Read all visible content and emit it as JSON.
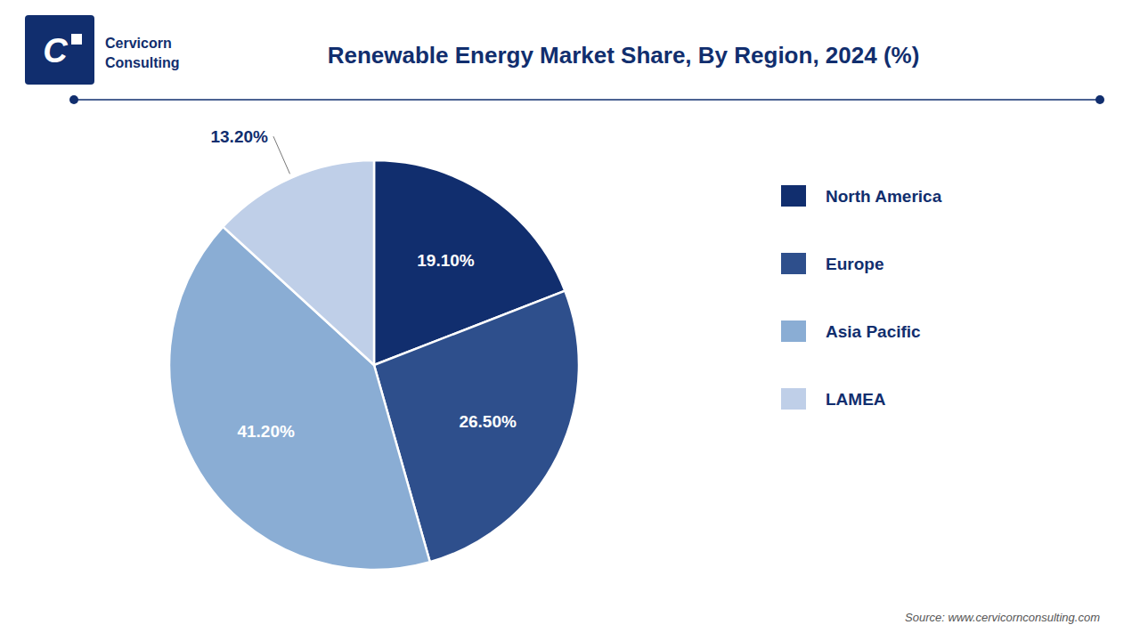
{
  "chart_data": {
    "type": "pie",
    "title": "Renewable Energy Market Share, By Region, 2024 (%)",
    "categories": [
      "North America",
      "Europe",
      "Asia Pacific",
      "LAMEA"
    ],
    "values": [
      19.1,
      26.5,
      41.2,
      13.2
    ],
    "value_labels": [
      "19.10%",
      "26.50%",
      "41.20%",
      "13.20%"
    ],
    "colors": [
      "#112e6e",
      "#2e4f8c",
      "#8aadd4",
      "#bfcfe8"
    ],
    "data_labels": true,
    "legend": "right",
    "annotations": [
      "C",
      "Cervicorn",
      "Consulting",
      "Source: www.cervicornconsulting.com"
    ]
  }
}
